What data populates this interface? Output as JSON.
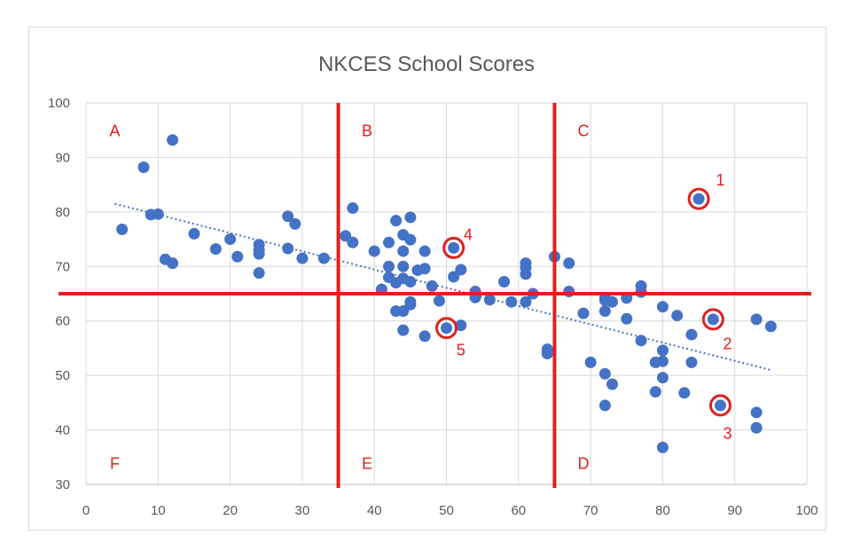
{
  "chart_data": {
    "type": "scatter",
    "title": "NKCES School Scores",
    "xlabel": "",
    "ylabel": "",
    "xlim": [
      0,
      100
    ],
    "ylim": [
      30,
      100
    ],
    "x_ticks": [
      "0",
      "10",
      "20",
      "30",
      "40",
      "50",
      "60",
      "70",
      "80",
      "90",
      "100"
    ],
    "y_ticks": [
      "30",
      "40",
      "50",
      "60",
      "70",
      "80",
      "90",
      "100"
    ],
    "grid": true,
    "point_color": "#4472c4",
    "trendline": {
      "style": "dotted",
      "color": "#4472c4",
      "from": [
        4,
        81.5
      ],
      "to": [
        95,
        51
      ]
    },
    "points": [
      [
        5,
        76.8
      ],
      [
        8,
        88.2
      ],
      [
        9,
        79.5
      ],
      [
        10,
        79.6
      ],
      [
        11,
        71.3
      ],
      [
        12,
        93.2
      ],
      [
        12,
        70.6
      ],
      [
        15,
        76
      ],
      [
        18,
        73.2
      ],
      [
        20,
        75
      ],
      [
        21,
        71.8
      ],
      [
        24,
        74
      ],
      [
        24,
        73
      ],
      [
        24,
        72.3
      ],
      [
        24,
        68.8
      ],
      [
        28,
        79.2
      ],
      [
        28,
        73.3
      ],
      [
        29,
        77.8
      ],
      [
        30,
        71.5
      ],
      [
        33,
        71.5
      ],
      [
        36,
        75.6
      ],
      [
        37,
        74.4
      ],
      [
        37,
        80.7
      ],
      [
        40,
        72.8
      ],
      [
        41,
        65.8
      ],
      [
        42,
        74.4
      ],
      [
        42,
        70
      ],
      [
        42,
        68
      ],
      [
        43,
        78.4
      ],
      [
        43,
        67
      ],
      [
        43,
        61.8
      ],
      [
        44,
        75.8
      ],
      [
        44,
        72.8
      ],
      [
        44,
        70
      ],
      [
        44,
        67.8
      ],
      [
        44,
        61.8
      ],
      [
        44,
        58.3
      ],
      [
        45,
        79
      ],
      [
        45,
        74.9
      ],
      [
        45,
        67.2
      ],
      [
        45,
        63.5
      ],
      [
        45,
        63
      ],
      [
        46,
        69.3
      ],
      [
        47,
        72.8
      ],
      [
        47,
        69.6
      ],
      [
        47,
        57.2
      ],
      [
        48,
        66.4
      ],
      [
        49,
        63.7
      ],
      [
        50,
        58.7
      ],
      [
        51,
        73.4
      ],
      [
        51,
        68.1
      ],
      [
        52,
        69.4
      ],
      [
        52,
        59.2
      ],
      [
        54,
        65.4
      ],
      [
        54,
        64.3
      ],
      [
        56,
        63.9
      ],
      [
        58,
        67.2
      ],
      [
        59,
        63.5
      ],
      [
        61,
        70.6
      ],
      [
        61,
        69.8
      ],
      [
        61,
        68.6
      ],
      [
        61,
        63.5
      ],
      [
        62,
        65
      ],
      [
        64,
        54.8
      ],
      [
        64,
        54
      ],
      [
        65,
        71.8
      ],
      [
        67,
        70.6
      ],
      [
        67,
        65.4
      ],
      [
        69,
        61.4
      ],
      [
        70,
        52.4
      ],
      [
        72,
        64.3
      ],
      [
        72,
        63.8
      ],
      [
        72,
        61.8
      ],
      [
        72,
        50.3
      ],
      [
        72,
        44.5
      ],
      [
        73,
        63.5
      ],
      [
        73,
        48.4
      ],
      [
        75,
        64.2
      ],
      [
        75,
        60.4
      ],
      [
        77,
        66.4
      ],
      [
        77,
        65.3
      ],
      [
        77,
        56.4
      ],
      [
        79,
        52.4
      ],
      [
        79,
        47
      ],
      [
        80,
        62.6
      ],
      [
        80,
        54.6
      ],
      [
        80,
        52.6
      ],
      [
        80,
        49.6
      ],
      [
        80,
        36.8
      ],
      [
        82,
        61
      ],
      [
        83,
        46.8
      ],
      [
        84,
        57.5
      ],
      [
        84,
        52.4
      ],
      [
        85,
        82.4
      ],
      [
        87,
        60.3
      ],
      [
        88,
        44.5
      ],
      [
        93,
        60.3
      ],
      [
        93,
        43.2
      ],
      [
        93,
        40.4
      ],
      [
        95,
        59
      ]
    ],
    "divider_lines": {
      "vertical_x": [
        35,
        65
      ],
      "horizontal_y": [
        65
      ],
      "color": "#e0201e"
    },
    "zone_labels": [
      {
        "label": "A",
        "x": 4,
        "y": 95
      },
      {
        "label": "B",
        "x": 39,
        "y": 95
      },
      {
        "label": "C",
        "x": 69,
        "y": 95
      },
      {
        "label": "D",
        "x": 69,
        "y": 34
      },
      {
        "label": "E",
        "x": 39,
        "y": 34
      },
      {
        "label": "F",
        "x": 4,
        "y": 34
      }
    ],
    "highlighted": [
      {
        "label": "1",
        "x": 85,
        "y": 82.4,
        "label_at": [
          88,
          86
        ]
      },
      {
        "label": "2",
        "x": 87,
        "y": 60.3,
        "label_at": [
          89,
          56
        ]
      },
      {
        "label": "3",
        "x": 88,
        "y": 44.5,
        "label_at": [
          89,
          39.5
        ]
      },
      {
        "label": "4",
        "x": 51,
        "y": 73.4,
        "label_at": [
          53,
          76
        ]
      },
      {
        "label": "5",
        "x": 50,
        "y": 58.7,
        "label_at": [
          52,
          54.8
        ]
      }
    ]
  }
}
